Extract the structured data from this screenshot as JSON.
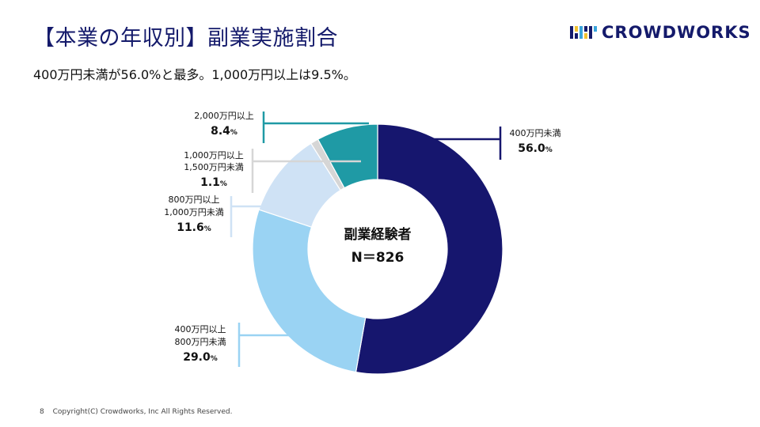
{
  "header": {
    "title": "【本業の年収別】副業実施割合",
    "subtitle": "400万円未満が56.0%と最多。1,000万円以上は9.5%。",
    "logo_text": "CROWDWORKS"
  },
  "footer": {
    "page_number": "8",
    "copyright": "Copyright(C) Crowdworks, Inc All Rights Reserved."
  },
  "colors": {
    "brand": "#141a6b",
    "slice_400_under": "#16166e",
    "slice_400_800": "#9ad3f3",
    "slice_800_1000": "#cfe2f5",
    "slice_1000_1500": "#d6d6d6",
    "slice_2000_over": "#1f9aa5"
  },
  "chart_data": {
    "type": "pie",
    "donut": true,
    "center_label": {
      "line1": "副業経験者",
      "line2": "N＝826"
    },
    "slices": [
      {
        "id": "under400",
        "label_lines": [
          "400万円未満"
        ],
        "value": 56.0,
        "value_text": "56.0",
        "unit": "%",
        "color": "#16166e",
        "leader_color": "#16166e"
      },
      {
        "id": "400to800",
        "label_lines": [
          "400万円以上",
          "800万円未満"
        ],
        "value": 29.0,
        "value_text": "29.0",
        "unit": "%",
        "color": "#9ad3f3",
        "leader_color": "#9ad3f3"
      },
      {
        "id": "800to1000",
        "label_lines": [
          "800万円以上",
          "1,000万円未満"
        ],
        "value": 11.6,
        "value_text": "11.6",
        "unit": "%",
        "color": "#cfe2f5",
        "leader_color": "#cfe2f5"
      },
      {
        "id": "1000to1500",
        "label_lines": [
          "1,000万円以上",
          "1,500万円未満"
        ],
        "value": 1.1,
        "value_text": "1.1",
        "unit": "%",
        "color": "#d6d6d6",
        "leader_color": "#d6d6d6"
      },
      {
        "id": "over2000",
        "label_lines": [
          "2,000万円以上"
        ],
        "value": 8.4,
        "value_text": "8.4",
        "unit": "%",
        "color": "#1f9aa5",
        "leader_color": "#1f9aa5"
      }
    ]
  }
}
